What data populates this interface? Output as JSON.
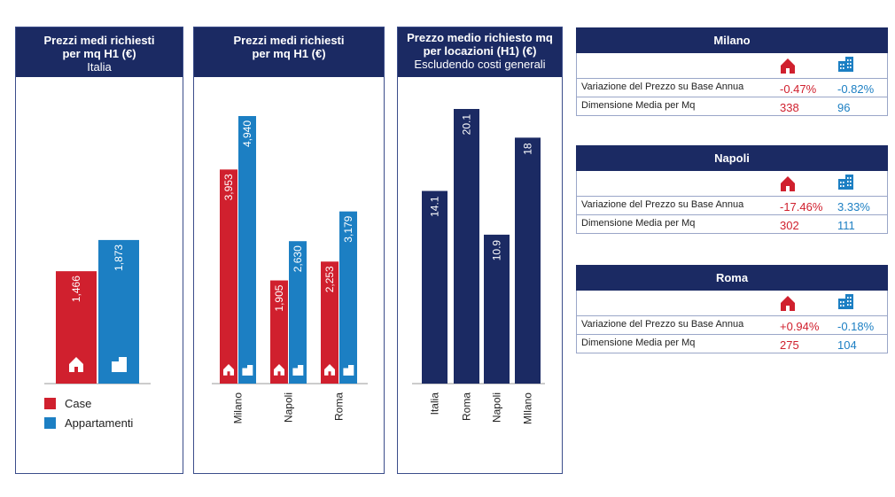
{
  "colors": {
    "case": "#d0202e",
    "appartamenti": "#1c7fc3",
    "navy": "#1b2a63"
  },
  "chart_data": [
    {
      "type": "bar",
      "title": "Prezzi medi richiesti per mq H1 (€)",
      "subtitle": "Italia",
      "categories": [
        ""
      ],
      "series": [
        {
          "name": "Case",
          "values": [
            1466
          ],
          "labels": [
            "1,466"
          ]
        },
        {
          "name": "Appartamenti",
          "values": [
            1873
          ],
          "labels": [
            "1,873"
          ]
        }
      ],
      "ylim": [
        0,
        5500
      ],
      "legend": [
        "Case",
        "Appartamenti"
      ]
    },
    {
      "type": "bar",
      "title": "Prezzi medi richiesti per mq H1 (€)",
      "categories": [
        "Milano",
        "Napoli",
        "Roma"
      ],
      "series": [
        {
          "name": "Case",
          "values": [
            3953,
            1905,
            2253
          ],
          "labels": [
            "3,953",
            "1,905",
            "2,253"
          ]
        },
        {
          "name": "Appartamenti",
          "values": [
            4940,
            2630,
            3179
          ],
          "labels": [
            "4,940",
            "2,630",
            "3,179"
          ]
        }
      ],
      "ylim": [
        0,
        5500
      ]
    },
    {
      "type": "bar",
      "title": "Prezzo medio richiesto mq per locazioni (H1) (€)",
      "subtitle": "Escludendo costi generali",
      "categories": [
        "Italia",
        "Roma",
        "Napoli",
        "MIlano"
      ],
      "values": [
        14.1,
        20.1,
        10.9,
        18
      ],
      "labels": [
        "14.1",
        "20.1",
        "10.9",
        "18"
      ],
      "ylim": [
        0,
        23
      ]
    }
  ],
  "panels": {
    "p1": {
      "title": "Prezzi medi richiesti per mq H1 (€)",
      "subtitle": "Italia"
    },
    "p2": {
      "title": "Prezzi medi richiesti per mq H1 (€)"
    },
    "p3": {
      "title": "Prezzo medio richiesto mq per locazioni (H1) (€)",
      "subtitle": "Escludendo costi generali"
    }
  },
  "legend": {
    "case": "Case",
    "appartamenti": "Appartamenti"
  },
  "tables": [
    {
      "city": "Milano",
      "row1_label": "Variazione del Prezzo su Base Annua",
      "row1_case": "-0.47%",
      "row1_app": "-0.82%",
      "row2_label": "Dimensione Media per Mq",
      "row2_case": "338",
      "row2_app": "96"
    },
    {
      "city": "Napoli",
      "row1_label": "Variazione del Prezzo su Base Annua",
      "row1_case": "-17.46%",
      "row1_app": "3.33%",
      "row2_label": "Dimensione Media per Mq",
      "row2_case": "302",
      "row2_app": "111"
    },
    {
      "city": "Roma",
      "row1_label": "Variazione del Prezzo su Base Annua",
      "row1_case": "+0.94%",
      "row1_app": "-0.18%",
      "row2_label": "Dimensione Media per Mq",
      "row2_case": "275",
      "row2_app": "104"
    }
  ],
  "icons": {
    "case": "house-icon",
    "appartamenti": "building-icon"
  }
}
